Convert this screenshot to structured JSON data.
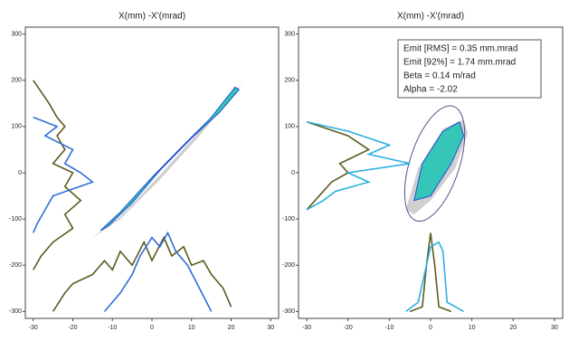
{
  "chart_data": [
    {
      "type": "phase",
      "title": "X(mm) -X'(mrad)",
      "xlim": [
        -32,
        32
      ],
      "ylim": [
        -315,
        315
      ],
      "xticks": [
        -30,
        -20,
        -10,
        0,
        10,
        20,
        30
      ],
      "yticks": [
        -300,
        -200,
        -100,
        0,
        100,
        200,
        300
      ],
      "core": {
        "color": "#36c6b8",
        "x": [
          -13,
          -8,
          0,
          8,
          15,
          21,
          22,
          17,
          10,
          2,
          -5,
          -11
        ],
        "values": [
          -125,
          -85,
          -10,
          60,
          120,
          185,
          180,
          130,
          75,
          5,
          -65,
          -115
        ]
      },
      "halo": {
        "color": "#b0b0b0",
        "x": [
          -15,
          -8,
          2,
          12,
          20,
          23,
          21,
          12,
          2,
          -8,
          -14
        ],
        "values": [
          -140,
          -95,
          -5,
          90,
          170,
          195,
          175,
          80,
          -15,
          -100,
          -135
        ]
      },
      "series": [
        {
          "color": "#5c5a1c",
          "x": [
            -30,
            -26,
            -24,
            -22,
            -24,
            -22,
            -25,
            -20,
            -22,
            -18,
            -22,
            -20,
            -25,
            -28,
            -30
          ],
          "values": [
            200,
            150,
            120,
            100,
            80,
            50,
            20,
            0,
            -30,
            -60,
            -90,
            -120,
            -150,
            -180,
            -210
          ]
        },
        {
          "color": "#2f6fd8",
          "x": [
            -30,
            -24,
            -27,
            -20,
            -22,
            -18,
            -15,
            -25,
            -27,
            -29,
            -30
          ],
          "values": [
            120,
            100,
            80,
            50,
            20,
            0,
            -20,
            -50,
            -80,
            -110,
            -130
          ]
        },
        {
          "color": "#5c5a1c",
          "x": [
            -25,
            -22,
            -20,
            -15,
            -12,
            -10,
            -8,
            -5,
            -2,
            0,
            3,
            5,
            8,
            10,
            13,
            15,
            18,
            20
          ],
          "values": [
            -300,
            -260,
            -240,
            -220,
            -190,
            -210,
            -170,
            -200,
            -150,
            -190,
            -140,
            -180,
            -160,
            -200,
            -190,
            -220,
            -250,
            -290
          ]
        },
        {
          "color": "#2f6fd8",
          "x": [
            -12,
            -8,
            -5,
            -3,
            0,
            2,
            4,
            6,
            9,
            12,
            15
          ],
          "values": [
            -300,
            -260,
            -220,
            -180,
            -140,
            -160,
            -130,
            -170,
            -200,
            -250,
            -300
          ]
        }
      ]
    },
    {
      "type": "phase",
      "title": "X(mm) -X'(mrad)",
      "xlim": [
        -32,
        32
      ],
      "ylim": [
        -315,
        315
      ],
      "xticks": [
        -30,
        -20,
        -10,
        0,
        10,
        20,
        30
      ],
      "yticks": [
        -300,
        -200,
        -100,
        0,
        100,
        200,
        300
      ],
      "core": {
        "color": "#36c6b8",
        "x": [
          -4,
          -2,
          3,
          7,
          8,
          5,
          0
        ],
        "values": [
          -60,
          20,
          90,
          110,
          80,
          20,
          -50
        ]
      },
      "halo": {
        "color": "#b0b0b0",
        "x": [
          -6,
          -3,
          3,
          8,
          9,
          6,
          0,
          -4
        ],
        "values": [
          -80,
          10,
          95,
          115,
          85,
          10,
          -60,
          -90
        ]
      },
      "ellipse": {
        "cx": 1,
        "cy": 20,
        "rx": 6,
        "ry": 130,
        "color": "#5a4f8a"
      },
      "annotations": [
        "Emit [RMS] = 0.35 mm.mrad",
        "Emit [92%] = 1.74 mm.mrad",
        "Beta = 0.14 m/rad",
        "Alpha = -2.02"
      ],
      "series": [
        {
          "color": "#5c5a1c",
          "x": [
            -30,
            -20,
            -15,
            -22,
            -20,
            -24,
            -27,
            -30
          ],
          "values": [
            110,
            80,
            50,
            20,
            0,
            -20,
            -50,
            -80
          ]
        },
        {
          "color": "#2bb0e0",
          "x": [
            -30,
            -20,
            -10,
            -15,
            -5,
            -20,
            -15,
            -23,
            -26,
            -30
          ],
          "values": [
            110,
            90,
            60,
            40,
            20,
            0,
            -20,
            -40,
            -60,
            -80
          ]
        },
        {
          "color": "#5c5a1c",
          "x": [
            -5,
            -2,
            -1,
            0,
            1,
            2,
            5
          ],
          "values": [
            -300,
            -290,
            -200,
            -130,
            -200,
            -290,
            -300
          ]
        },
        {
          "color": "#2bb0e0",
          "x": [
            -6,
            -3,
            0,
            2,
            3,
            4,
            8
          ],
          "values": [
            -300,
            -280,
            -160,
            -150,
            -170,
            -280,
            -300
          ]
        }
      ]
    }
  ]
}
